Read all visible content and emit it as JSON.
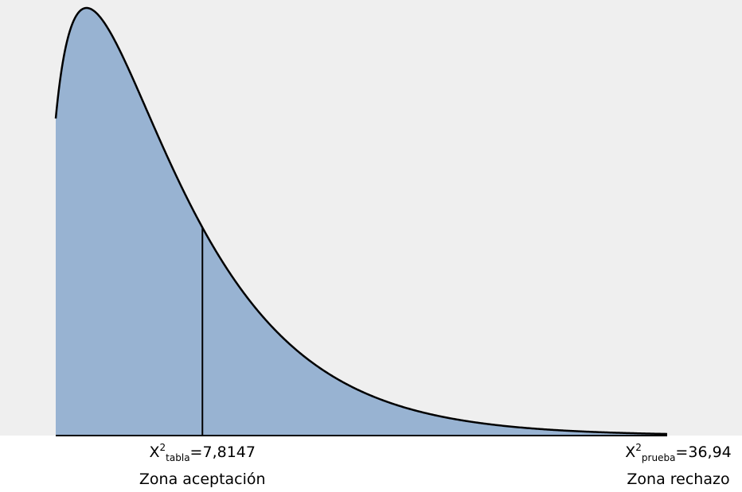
{
  "chart_data": {
    "type": "area",
    "distribution": "chi-square",
    "degrees_of_freedom": 3,
    "x_range": [
      -5.5,
      50
    ],
    "colors": {
      "background": "#efefef",
      "fill": "#98b3d2",
      "stroke": "#000000"
    },
    "markers": [
      {
        "symbol": "X",
        "superscript": "2",
        "subscript": "tabla",
        "value_text": "=7,8147",
        "value": 7.8147,
        "zone": "Zona aceptación",
        "draw_line": true
      },
      {
        "symbol": "X",
        "superscript": "2",
        "subscript": "prueba",
        "value_text": "=36,94",
        "value": 36.94,
        "zone": "Zona rechazo",
        "draw_line": false
      }
    ]
  }
}
